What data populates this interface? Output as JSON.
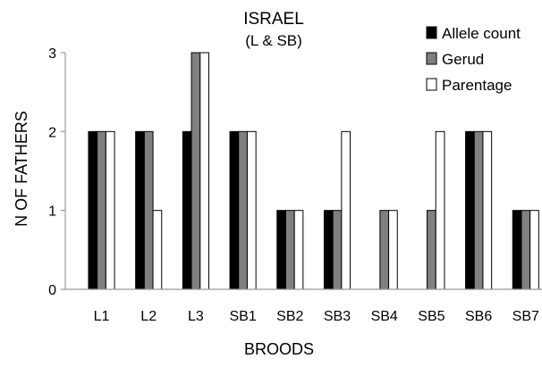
{
  "chart_data": {
    "type": "bar",
    "title": "ISRAEL",
    "subtitle": "(L & SB)",
    "xlabel": "BROODS",
    "ylabel": "N OF FATHERS",
    "ylim": [
      0,
      3
    ],
    "yticks": [
      "0",
      "1",
      "2",
      "3"
    ],
    "grid": false,
    "legend_position": "top-right",
    "categories": [
      "L1",
      "L2",
      "L3",
      "SB1",
      "SB2",
      "SB3",
      "SB4",
      "SB5",
      "SB6",
      "SB7"
    ],
    "series": [
      {
        "name": "Allele count",
        "color": "#000000",
        "values": [
          2,
          2,
          2,
          2,
          1,
          1,
          0,
          0,
          2,
          1
        ]
      },
      {
        "name": "Gerud",
        "color": "#808080",
        "values": [
          2,
          2,
          3,
          2,
          1,
          1,
          1,
          1,
          2,
          1
        ]
      },
      {
        "name": "Parentage",
        "color": "#ffffff",
        "values": [
          2,
          1,
          3,
          2,
          1,
          2,
          1,
          2,
          2,
          1
        ]
      }
    ]
  }
}
